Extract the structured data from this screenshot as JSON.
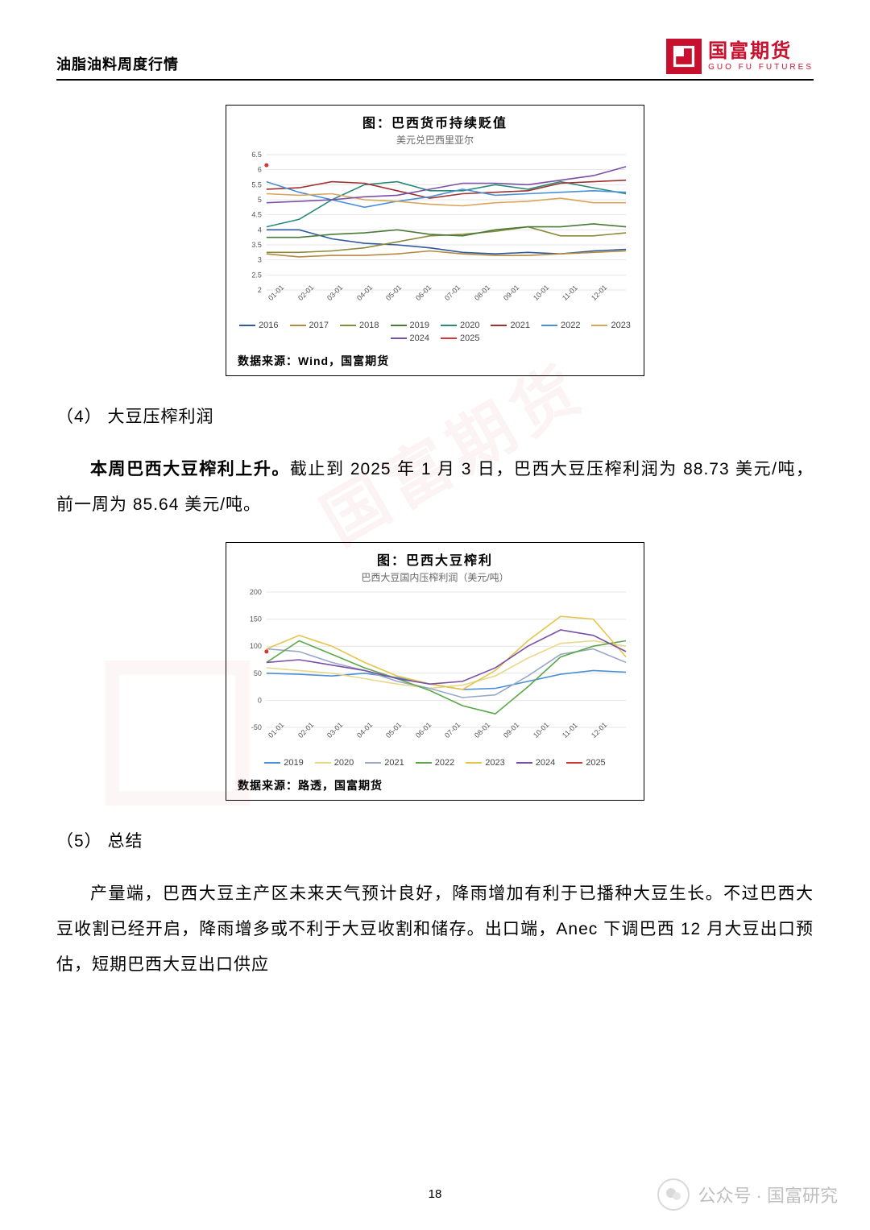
{
  "header": {
    "doc_title": "油脂油料周度行情",
    "logo_cn": "国富期货",
    "logo_en": "GUO FU FUTURES"
  },
  "chart1": {
    "title": "图：巴西货币持续贬值",
    "subtitle": "美元兑巴西里亚尔",
    "type": "line",
    "ylim": [
      2,
      6.5
    ],
    "yticks": [
      2,
      2.5,
      3,
      3.5,
      4,
      4.5,
      5,
      5.5,
      6,
      6.5
    ],
    "xticks": [
      "01-01",
      "02-01",
      "03-01",
      "04-01",
      "05-01",
      "06-01",
      "07-01",
      "08-01",
      "09-01",
      "10-01",
      "11-01",
      "12-01"
    ],
    "grid_color": "#e6e6e6",
    "axis_color": "#cccccc",
    "background": "#ffffff",
    "tick_fontsize": 9,
    "series": [
      {
        "name": "2016",
        "color": "#2e5a9c",
        "data": [
          4.0,
          4.0,
          3.7,
          3.55,
          3.5,
          3.4,
          3.25,
          3.2,
          3.25,
          3.2,
          3.3,
          3.35
        ]
      },
      {
        "name": "2017",
        "color": "#b58a3e",
        "data": [
          3.2,
          3.1,
          3.15,
          3.15,
          3.2,
          3.3,
          3.2,
          3.15,
          3.15,
          3.2,
          3.25,
          3.3
        ]
      },
      {
        "name": "2018",
        "color": "#8a8a3a",
        "data": [
          3.25,
          3.25,
          3.3,
          3.4,
          3.6,
          3.8,
          3.85,
          3.95,
          4.1,
          3.8,
          3.8,
          3.9
        ]
      },
      {
        "name": "2019",
        "color": "#4a7a36",
        "data": [
          3.75,
          3.75,
          3.85,
          3.9,
          4.0,
          3.85,
          3.8,
          4.0,
          4.1,
          4.1,
          4.2,
          4.1
        ]
      },
      {
        "name": "2020",
        "color": "#2a8a7a",
        "data": [
          4.1,
          4.35,
          5.0,
          5.5,
          5.6,
          5.3,
          5.3,
          5.5,
          5.35,
          5.6,
          5.4,
          5.2
        ]
      },
      {
        "name": "2021",
        "color": "#a03030",
        "data": [
          5.35,
          5.4,
          5.6,
          5.55,
          5.3,
          5.05,
          5.2,
          5.25,
          5.3,
          5.55,
          5.6,
          5.65
        ]
      },
      {
        "name": "2022",
        "color": "#4a8fd6",
        "data": [
          5.6,
          5.25,
          5.0,
          4.75,
          4.95,
          5.1,
          5.35,
          5.15,
          5.2,
          5.25,
          5.3,
          5.25
        ]
      },
      {
        "name": "2023",
        "color": "#d9a55a",
        "data": [
          5.2,
          5.15,
          5.2,
          5.0,
          4.95,
          4.85,
          4.8,
          4.9,
          4.95,
          5.05,
          4.9,
          4.9
        ]
      },
      {
        "name": "2024",
        "color": "#7a4fa6",
        "data": [
          4.9,
          4.95,
          5.0,
          5.1,
          5.15,
          5.35,
          5.55,
          5.55,
          5.5,
          5.65,
          5.8,
          6.1
        ]
      },
      {
        "name": "2025",
        "color": "#d63636",
        "data": [
          6.15
        ]
      }
    ],
    "source": "数据来源：Wind，国富期货"
  },
  "section4": {
    "heading": "（4） 大豆压榨利润",
    "p1_strong": "本周巴西大豆榨利上升。",
    "p1_rest": "截止到 2025 年 1 月 3 日，巴西大豆压榨利润为 88.73 美元/吨，前一周为 85.64 美元/吨。"
  },
  "chart2": {
    "title": "图：巴西大豆榨利",
    "subtitle": "巴西大豆国内压榨利润（美元/吨）",
    "type": "line",
    "ylim": [
      -50,
      200
    ],
    "yticks": [
      -50,
      0,
      50,
      100,
      150,
      200
    ],
    "xticks": [
      "01-01",
      "02-01",
      "03-01",
      "04-01",
      "05-01",
      "06-01",
      "07-01",
      "08-01",
      "09-01",
      "10-01",
      "11-01",
      "12-01"
    ],
    "grid_color": "#e6e6e6",
    "axis_color": "#cccccc",
    "background": "#ffffff",
    "tick_fontsize": 9,
    "series": [
      {
        "name": "2019",
        "color": "#4a8fd6",
        "data": [
          50,
          48,
          45,
          50,
          42,
          30,
          20,
          22,
          35,
          48,
          55,
          52
        ]
      },
      {
        "name": "2020",
        "color": "#e8d88a",
        "data": [
          60,
          55,
          50,
          40,
          30,
          22,
          28,
          45,
          78,
          105,
          110,
          100
        ]
      },
      {
        "name": "2021",
        "color": "#9aa8c8",
        "data": [
          95,
          90,
          70,
          55,
          35,
          22,
          5,
          10,
          45,
          85,
          95,
          70
        ]
      },
      {
        "name": "2022",
        "color": "#5aa84a",
        "data": [
          70,
          110,
          85,
          60,
          40,
          18,
          -10,
          -25,
          25,
          80,
          100,
          110
        ]
      },
      {
        "name": "2023",
        "color": "#e6c44a",
        "data": [
          95,
          120,
          100,
          70,
          45,
          30,
          20,
          55,
          110,
          155,
          150,
          80
        ]
      },
      {
        "name": "2024",
        "color": "#7a4fa6",
        "data": [
          70,
          75,
          65,
          55,
          40,
          30,
          35,
          60,
          100,
          130,
          120,
          90
        ]
      },
      {
        "name": "2025",
        "color": "#d63636",
        "data": [
          90
        ]
      }
    ],
    "source": "数据来源：路透，国富期货"
  },
  "section5": {
    "heading": "（5） 总结",
    "p1": "产量端，巴西大豆主产区未来天气预计良好，降雨增加有利于已播种大豆生长。不过巴西大豆收割已经开启，降雨增多或不利于大豆收割和储存。出口端，Anec 下调巴西 12 月大豆出口预估，短期巴西大豆出口供应"
  },
  "page_number": "18",
  "footer": {
    "wechat_label": "公众号 · 国富研究"
  }
}
